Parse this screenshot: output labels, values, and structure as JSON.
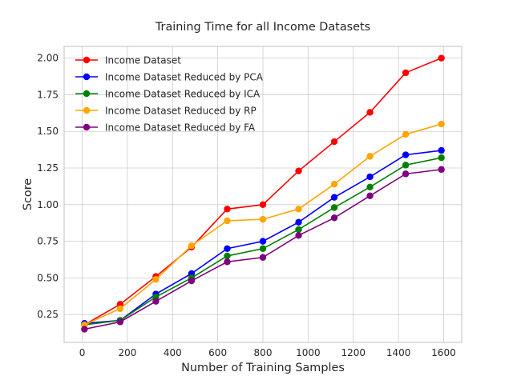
{
  "chart_data": {
    "type": "line",
    "title": "Training Time for all Income Datasets",
    "xlabel": "Number of Training Samples",
    "ylabel": "Score",
    "xlim": [
      -80,
      1680
    ],
    "ylim": [
      0.06,
      2.08
    ],
    "xticks": [
      0,
      200,
      400,
      600,
      800,
      1000,
      1200,
      1400,
      1600
    ],
    "yticks": [
      0.25,
      0.5,
      0.75,
      1.0,
      1.25,
      1.5,
      1.75,
      2.0
    ],
    "xtick_labels": [
      "0",
      "200",
      "400",
      "600",
      "800",
      "1000",
      "1200",
      "1400",
      "1600"
    ],
    "ytick_labels": [
      "0.25",
      "0.50",
      "0.75",
      "1.00",
      "1.25",
      "1.50",
      "1.75",
      "2.00"
    ],
    "grid": true,
    "legend_position": "upper-left",
    "x": [
      10,
      168,
      326,
      484,
      642,
      800,
      958,
      1116,
      1274,
      1432,
      1590
    ],
    "series": [
      {
        "name": "Income Dataset",
        "color": "#ff0000",
        "values": [
          0.18,
          0.32,
          0.51,
          0.71,
          0.97,
          1.0,
          1.23,
          1.43,
          1.63,
          1.9,
          2.0
        ]
      },
      {
        "name": "Income Dataset Reduced by PCA",
        "color": "#0000ff",
        "values": [
          0.19,
          0.21,
          0.39,
          0.53,
          0.7,
          0.75,
          0.88,
          1.05,
          1.19,
          1.34,
          1.37
        ]
      },
      {
        "name": "Income Dataset Reduced by ICA",
        "color": "#008000",
        "values": [
          0.18,
          0.21,
          0.37,
          0.5,
          0.65,
          0.7,
          0.83,
          0.98,
          1.12,
          1.27,
          1.32
        ]
      },
      {
        "name": "Income Dataset Reduced by RP",
        "color": "#ffa500",
        "values": [
          0.18,
          0.29,
          0.49,
          0.72,
          0.89,
          0.9,
          0.97,
          1.14,
          1.33,
          1.48,
          1.55
        ]
      },
      {
        "name": "Income Dataset Reduced by FA",
        "color": "#800080",
        "values": [
          0.15,
          0.2,
          0.34,
          0.48,
          0.61,
          0.64,
          0.79,
          0.91,
          1.06,
          1.21,
          1.24
        ]
      }
    ]
  }
}
